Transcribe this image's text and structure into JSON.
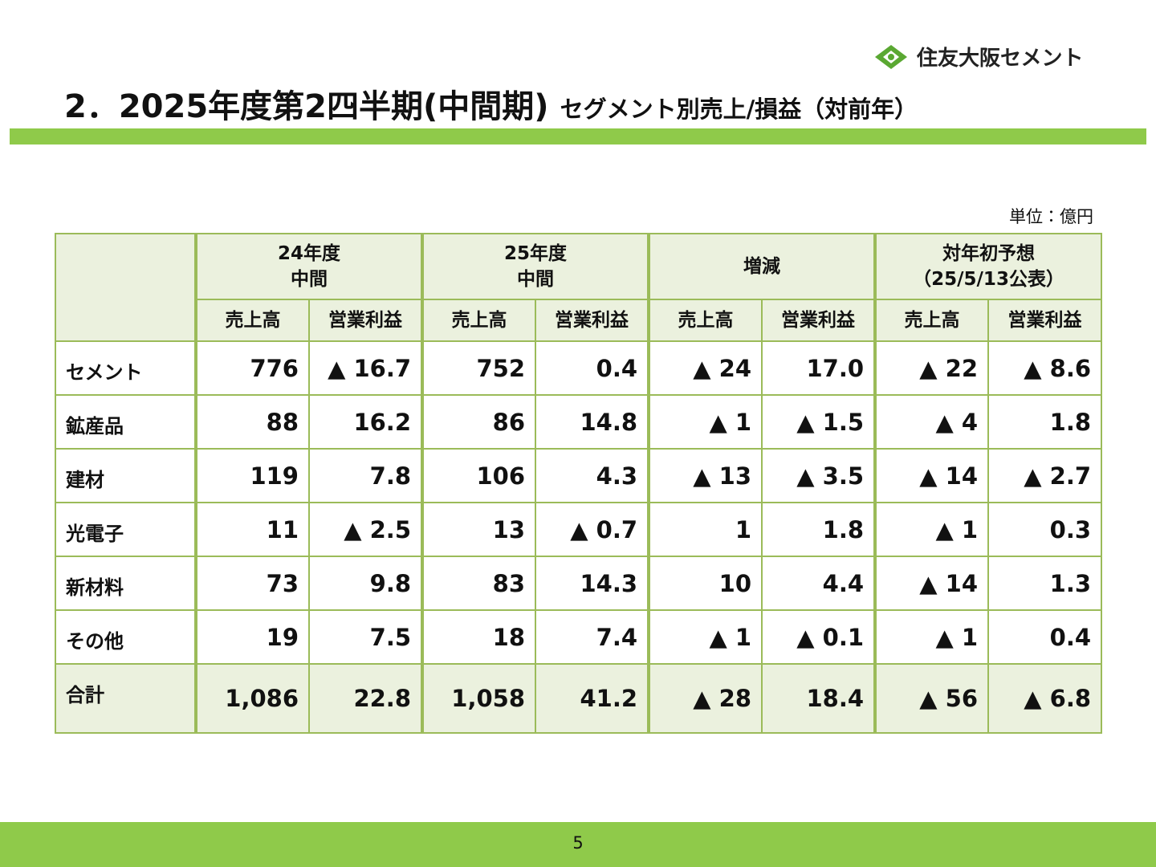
{
  "header": {
    "logo": "住友大阪セメント",
    "title_main": "2．2025年度第2四半期(中間期)",
    "title_sub": "セグメント別売上/損益（対前年）"
  },
  "unit": "単位：億円",
  "table": {
    "group_headers": [
      [
        "24年度",
        "中間"
      ],
      [
        "25年度",
        "中間"
      ],
      [
        "増減"
      ],
      [
        "対年初予想",
        "（25/5/13公表）"
      ]
    ],
    "sub_headers": [
      "売上高",
      "営業利益",
      "売上高",
      "営業利益",
      "売上高",
      "営業利益",
      "売上高",
      "営業利益"
    ],
    "rows": [
      [
        "セメント",
        "776",
        "▲ 16.7",
        "752",
        "0.4",
        "▲ 24",
        "17.0",
        "▲ 22",
        "▲ 8.6"
      ],
      [
        "鉱産品",
        "88",
        "16.2",
        "86",
        "14.8",
        "▲ 1",
        "▲ 1.5",
        "▲ 4",
        "1.8"
      ],
      [
        "建材",
        "119",
        "7.8",
        "106",
        "4.3",
        "▲ 13",
        "▲ 3.5",
        "▲ 14",
        "▲ 2.7"
      ],
      [
        "光電子",
        "11",
        "▲ 2.5",
        "13",
        "▲ 0.7",
        "1",
        "1.8",
        "▲ 1",
        "0.3"
      ],
      [
        "新材料",
        "73",
        "9.8",
        "83",
        "14.3",
        "10",
        "4.4",
        "▲ 14",
        "1.3"
      ],
      [
        "その他",
        "19",
        "7.5",
        "18",
        "7.4",
        "▲ 1",
        "▲ 0.1",
        "▲ 1",
        "0.4"
      ],
      [
        "合計",
        "1,086",
        "22.8",
        "1,058",
        "41.2",
        "▲ 28",
        "18.4",
        "▲ 56",
        "▲ 6.8"
      ]
    ]
  },
  "page_number": "5"
}
